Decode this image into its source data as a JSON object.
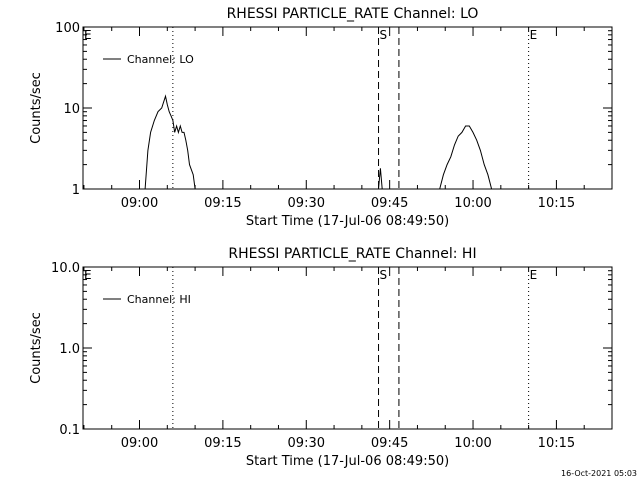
{
  "footer_timestamp": "16-Oct-2021 05:03",
  "chart_data": [
    {
      "type": "line",
      "title": "RHESSI PARTICLE_RATE Channel: LO",
      "xlabel": "Start Time (17-Jul-06 08:49:50)",
      "ylabel": "Counts/sec",
      "yscale": "log",
      "ylim": [
        1,
        100
      ],
      "yticks": [
        1,
        10,
        100
      ],
      "ytick_labels": [
        "1",
        "10",
        "100"
      ],
      "xlim": [
        "08:49:50",
        "10:25:00"
      ],
      "xticks": [
        "09:00",
        "09:15",
        "09:30",
        "09:45",
        "10:00",
        "10:15"
      ],
      "legend": {
        "position": "top-left",
        "entries": [
          "Channel: LO"
        ]
      },
      "markers": [
        {
          "time": "08:49:50",
          "label": "E",
          "style": "dotted"
        },
        {
          "time": "09:06:00",
          "label": "",
          "style": "dotted"
        },
        {
          "time": "09:43:00",
          "label": "S",
          "style": "dashed"
        },
        {
          "time": "09:46:40",
          "label": "",
          "style": "dashed"
        },
        {
          "time": "10:10:00",
          "label": "E",
          "style": "dotted"
        },
        {
          "time": "10:25:00",
          "label": "",
          "style": "dotted"
        }
      ],
      "series": [
        {
          "name": "Channel: LO",
          "x": [
            "09:01:00",
            "09:01:30",
            "09:02:00",
            "09:02:40",
            "09:03:20",
            "09:04:00",
            "09:04:40",
            "09:05:00",
            "09:05:20",
            "09:05:40",
            "09:06:00",
            "09:06:20",
            "09:06:40",
            "09:07:00",
            "09:07:20",
            "09:07:40",
            "09:08:00",
            "09:08:20",
            "09:08:40",
            "09:09:00",
            "09:09:40",
            "09:10:00",
            "09:43:00",
            "09:43:20",
            "09:43:40",
            "09:54:00",
            "09:54:40",
            "09:55:20",
            "09:56:00",
            "09:56:40",
            "09:57:20",
            "09:58:00",
            "09:58:40",
            "09:59:20",
            "10:00:00",
            "10:00:40",
            "10:01:20",
            "10:02:00",
            "10:02:40",
            "10:03:20"
          ],
          "y": [
            1,
            3,
            5,
            7,
            9,
            10,
            14,
            11,
            9,
            8,
            7,
            5,
            6,
            5,
            6,
            5,
            5,
            4,
            3,
            2,
            1.5,
            1,
            1,
            1.8,
            1,
            1,
            1.5,
            2,
            2.5,
            3.5,
            4.5,
            5,
            6,
            6,
            5,
            4,
            3,
            2,
            1.5,
            1
          ]
        }
      ]
    },
    {
      "type": "line",
      "title": "RHESSI PARTICLE_RATE Channel: HI",
      "xlabel": "Start Time (17-Jul-06 08:49:50)",
      "ylabel": "Counts/sec",
      "yscale": "log",
      "ylim": [
        0.1,
        10
      ],
      "yticks": [
        0.1,
        1,
        10
      ],
      "ytick_labels": [
        "0.1",
        "1.0",
        "10.0"
      ],
      "xlim": [
        "08:49:50",
        "10:25:00"
      ],
      "xticks": [
        "09:00",
        "09:15",
        "09:30",
        "09:45",
        "10:00",
        "10:15"
      ],
      "legend": {
        "position": "top-left",
        "entries": [
          "Channel: HI"
        ]
      },
      "markers": [
        {
          "time": "08:49:50",
          "label": "E",
          "style": "dotted"
        },
        {
          "time": "09:06:00",
          "label": "",
          "style": "dotted"
        },
        {
          "time": "09:43:00",
          "label": "S",
          "style": "dashed"
        },
        {
          "time": "09:46:40",
          "label": "",
          "style": "dashed"
        },
        {
          "time": "10:10:00",
          "label": "E",
          "style": "dotted"
        },
        {
          "time": "10:25:00",
          "label": "",
          "style": "dotted"
        }
      ],
      "series": [
        {
          "name": "Channel: HI",
          "x": [],
          "y": []
        }
      ]
    }
  ]
}
